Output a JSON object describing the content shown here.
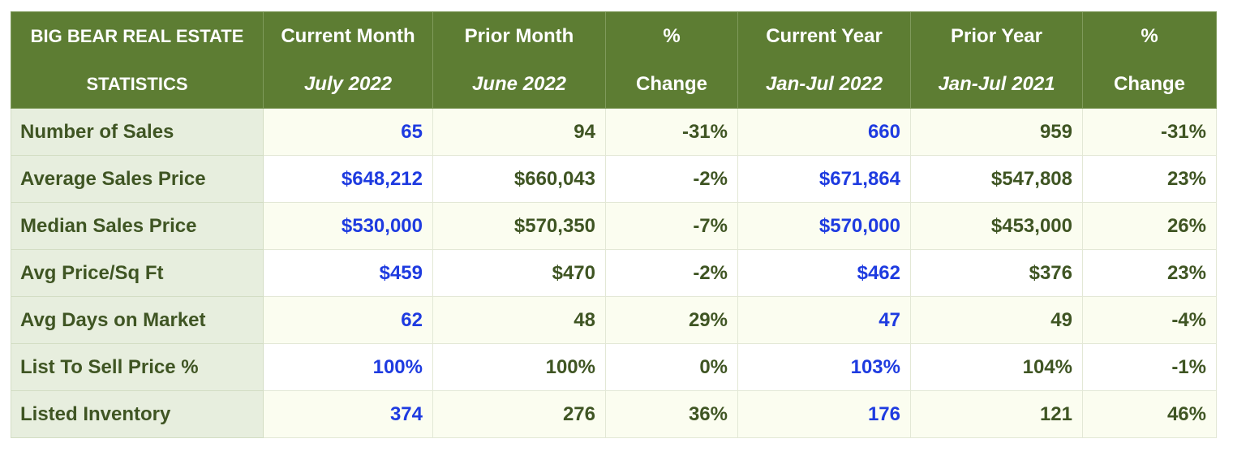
{
  "table": {
    "header": {
      "title_line1": "BIG BEAR REAL ESTATE",
      "title_line2": "STATISTICS",
      "columns": [
        {
          "line1": "Current Month",
          "line2": "July 2022"
        },
        {
          "line1": "Prior Month",
          "line2": "June 2022"
        },
        {
          "line1": "%",
          "line2": "Change"
        },
        {
          "line1": "Current Year",
          "line2": "Jan-Jul 2022"
        },
        {
          "line1": "Prior Year",
          "line2": "Jan-Jul 2021"
        },
        {
          "line1": "%",
          "line2": "Change"
        }
      ]
    },
    "rows": [
      {
        "label": "Number of Sales",
        "values": [
          "65",
          "94",
          "-31%",
          "660",
          "959",
          "-31%"
        ]
      },
      {
        "label": "Average Sales Price",
        "values": [
          "$648,212",
          "$660,043",
          "-2%",
          "$671,864",
          "$547,808",
          "23%"
        ]
      },
      {
        "label": "Median Sales Price",
        "values": [
          "$530,000",
          "$570,350",
          "-7%",
          "$570,000",
          "$453,000",
          "26%"
        ]
      },
      {
        "label": "Avg Price/Sq Ft",
        "values": [
          "$459",
          "$470",
          "-2%",
          "$462",
          "$376",
          "23%"
        ]
      },
      {
        "label": "Avg Days on Market",
        "values": [
          "62",
          "48",
          "29%",
          "47",
          "49",
          "-4%"
        ]
      },
      {
        "label": "List To Sell Price %",
        "values": [
          "100%",
          "100%",
          "0%",
          "103%",
          "104%",
          "-1%"
        ]
      },
      {
        "label": "Listed Inventory",
        "values": [
          "374",
          "276",
          "36%",
          "176",
          "121",
          "46%"
        ]
      }
    ]
  },
  "colors": {
    "header_bg": "#5d7d33",
    "header_text": "#ffffff",
    "label_bg": "#e7eede",
    "text_green": "#3f5523",
    "highlight_blue": "#1e3be0",
    "row_alt_bg": "#fbfdf0"
  }
}
